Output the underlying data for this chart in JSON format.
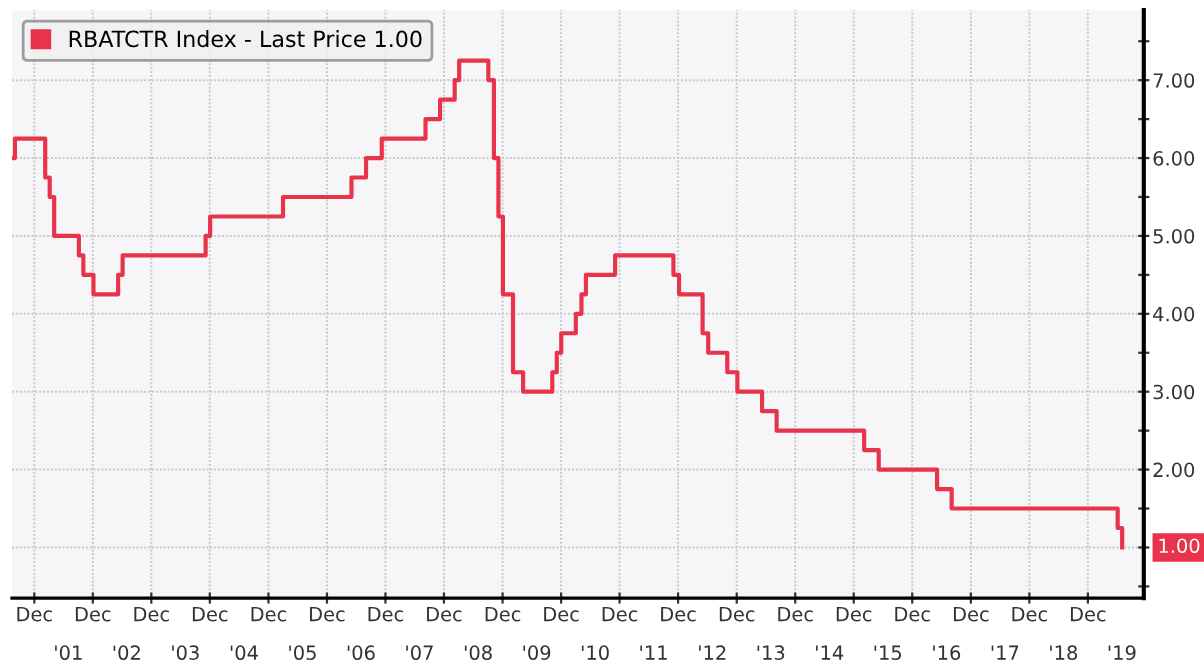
{
  "chart_data": {
    "type": "step",
    "x": [
      "2000-07-15",
      "2000-08-02",
      "2001-02-07",
      "2001-03-07",
      "2001-04-04",
      "2001-09-05",
      "2001-10-03",
      "2001-12-05",
      "2002-05-08",
      "2002-06-05",
      "2003-11-05",
      "2003-12-03",
      "2005-03-02",
      "2006-05-03",
      "2006-08-02",
      "2006-11-08",
      "2007-08-08",
      "2007-11-07",
      "2008-02-06",
      "2008-03-05",
      "2008-09-03",
      "2008-10-08",
      "2008-11-05",
      "2008-12-03",
      "2009-02-04",
      "2009-04-08",
      "2009-10-07",
      "2009-11-04",
      "2009-12-02",
      "2010-03-03",
      "2010-04-07",
      "2010-05-05",
      "2010-11-03",
      "2011-11-02",
      "2011-12-07",
      "2012-05-02",
      "2012-06-06",
      "2012-10-03",
      "2012-12-05",
      "2013-05-08",
      "2013-08-07",
      "2015-02-04",
      "2015-05-06",
      "2016-05-04",
      "2016-08-03",
      "2019-06-05",
      "2019-07-03"
    ],
    "series": [
      {
        "name": "RBATCTR Index - Last Price 1.00",
        "color": "#e8334a",
        "values": [
          6.0,
          6.25,
          5.75,
          5.5,
          5.0,
          4.75,
          4.5,
          4.25,
          4.5,
          4.75,
          5.0,
          5.25,
          5.5,
          5.75,
          6.0,
          6.25,
          6.5,
          6.75,
          7.0,
          7.25,
          7.0,
          6.0,
          5.25,
          4.25,
          3.25,
          3.0,
          3.25,
          3.5,
          3.75,
          4.0,
          4.25,
          4.5,
          4.75,
          4.5,
          4.25,
          3.75,
          3.5,
          3.25,
          3.0,
          2.75,
          2.5,
          2.25,
          2.0,
          1.75,
          1.5,
          1.25,
          1.0
        ]
      }
    ],
    "xlim": [
      "2000-07-15",
      "2019-11-15"
    ],
    "xticks": [
      {
        "value": "2000-12-01",
        "label": "Dec"
      },
      {
        "value": "2001-12-01",
        "label": "Dec"
      },
      {
        "value": "2002-12-01",
        "label": "Dec"
      },
      {
        "value": "2003-12-01",
        "label": "Dec"
      },
      {
        "value": "2004-12-01",
        "label": "Dec"
      },
      {
        "value": "2005-12-01",
        "label": "Dec"
      },
      {
        "value": "2006-12-01",
        "label": "Dec"
      },
      {
        "value": "2007-12-01",
        "label": "Dec"
      },
      {
        "value": "2008-12-01",
        "label": "Dec"
      },
      {
        "value": "2009-12-01",
        "label": "Dec"
      },
      {
        "value": "2010-12-01",
        "label": "Dec"
      },
      {
        "value": "2011-12-01",
        "label": "Dec"
      },
      {
        "value": "2012-12-01",
        "label": "Dec"
      },
      {
        "value": "2013-12-01",
        "label": "Dec"
      },
      {
        "value": "2014-12-01",
        "label": "Dec"
      },
      {
        "value": "2015-12-01",
        "label": "Dec"
      },
      {
        "value": "2016-12-01",
        "label": "Dec"
      },
      {
        "value": "2017-12-01",
        "label": "Dec"
      },
      {
        "value": "2018-12-01",
        "label": "Dec"
      }
    ],
    "x2lim": [
      "2000-07-15",
      "2019-11-15"
    ],
    "x2ticks": [
      {
        "value": "2001-07-01",
        "label": "'01"
      },
      {
        "value": "2002-07-01",
        "label": "'02"
      },
      {
        "value": "2003-07-01",
        "label": "'03"
      },
      {
        "value": "2004-07-01",
        "label": "'04"
      },
      {
        "value": "2005-07-01",
        "label": "'05"
      },
      {
        "value": "2006-07-01",
        "label": "'06"
      },
      {
        "value": "2007-07-01",
        "label": "'07"
      },
      {
        "value": "2008-07-01",
        "label": "'08"
      },
      {
        "value": "2009-07-01",
        "label": "'09"
      },
      {
        "value": "2010-07-01",
        "label": "'10"
      },
      {
        "value": "2011-07-01",
        "label": "'11"
      },
      {
        "value": "2012-07-01",
        "label": "'12"
      },
      {
        "value": "2013-07-01",
        "label": "'13"
      },
      {
        "value": "2014-07-01",
        "label": "'14"
      },
      {
        "value": "2015-07-01",
        "label": "'15"
      },
      {
        "value": "2016-07-01",
        "label": "'16"
      },
      {
        "value": "2017-07-01",
        "label": "'17"
      },
      {
        "value": "2018-07-01",
        "label": "'18"
      },
      {
        "value": "2019-07-01",
        "label": "'19"
      }
    ],
    "ylim": [
      0.35,
      7.9
    ],
    "yticks": [
      {
        "value": 0.5,
        "label": null
      },
      {
        "value": 1,
        "label": null
      },
      {
        "value": 1.5,
        "label": null
      },
      {
        "value": 2,
        "label": "2.00"
      },
      {
        "value": 2.5,
        "label": null
      },
      {
        "value": 3,
        "label": "3.00"
      },
      {
        "value": 3.5,
        "label": null
      },
      {
        "value": 4,
        "label": "4.00"
      },
      {
        "value": 4.5,
        "label": null
      },
      {
        "value": 5,
        "label": "5.00"
      },
      {
        "value": 5.5,
        "label": null
      },
      {
        "value": 6,
        "label": "6.00"
      },
      {
        "value": 6.5,
        "label": null
      },
      {
        "value": 7,
        "label": "7.00"
      },
      {
        "value": 7.5,
        "label": null
      }
    ],
    "annotations": [
      {
        "text": "1.00",
        "x": "2019-07-03",
        "y": 1.0
      }
    ],
    "grid": true,
    "legend": "top left"
  }
}
